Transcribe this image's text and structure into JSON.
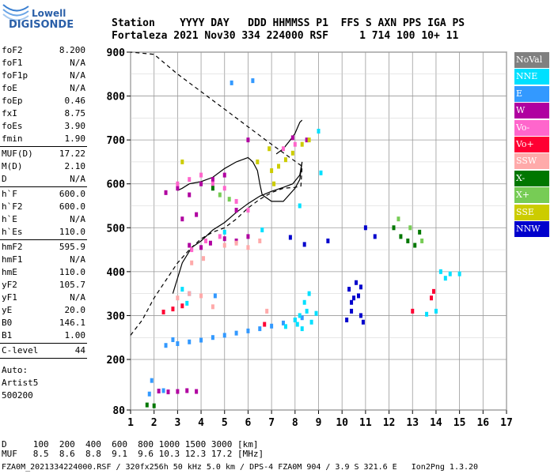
{
  "logo": {
    "line1": "Lowell",
    "line2": "DIGISONDE"
  },
  "header": {
    "labels": "Station    YYYY DAY   DDD HHMMSS P1  FFS S AXN PPS IGA PS",
    "values": "Fortaleza 2021 Nov30 334 224000 RSF     1 714 100 10+ 11"
  },
  "params": {
    "group1": [
      {
        "label": "foF2",
        "value": "8.200"
      },
      {
        "label": "foF1",
        "value": "N/A"
      },
      {
        "label": "foF1p",
        "value": "N/A"
      },
      {
        "label": "foE",
        "value": "N/A"
      },
      {
        "label": "foEp",
        "value": "0.46"
      },
      {
        "label": "fxI",
        "value": "8.75"
      },
      {
        "label": "foEs",
        "value": "3.90"
      },
      {
        "label": "fmin",
        "value": "1.90"
      }
    ],
    "group2": [
      {
        "label": "MUF(D)",
        "value": "17.22"
      },
      {
        "label": "M(D)",
        "value": "2.10"
      },
      {
        "label": "D",
        "value": "N/A"
      }
    ],
    "group3": [
      {
        "label": "h`F",
        "value": "600.0"
      },
      {
        "label": "h`F2",
        "value": "600.0"
      },
      {
        "label": "h`E",
        "value": "N/A"
      },
      {
        "label": "h`Es",
        "value": "110.0"
      }
    ],
    "group4": [
      {
        "label": "hmF2",
        "value": "595.9"
      },
      {
        "label": "hmF1",
        "value": "N/A"
      },
      {
        "label": "hmE",
        "value": "110.0"
      },
      {
        "label": "yF2",
        "value": "105.7"
      },
      {
        "label": "yF1",
        "value": "N/A"
      },
      {
        "label": "yE",
        "value": "20.0"
      },
      {
        "label": "B0",
        "value": "146.1"
      },
      {
        "label": "B1",
        "value": "1.00"
      }
    ],
    "group5": [
      {
        "label": "C-level",
        "value": "44"
      }
    ],
    "auto": [
      "Auto:",
      "Artist5",
      "500200"
    ]
  },
  "legend": [
    {
      "label": "NoVal",
      "color": "#808080"
    },
    {
      "label": "NNE",
      "color": "#00e0ff"
    },
    {
      "label": "E",
      "color": "#3399ff"
    },
    {
      "label": "W",
      "color": "#b000a0"
    },
    {
      "label": "Vo-",
      "color": "#ff66cc"
    },
    {
      "label": "Vo+",
      "color": "#ff0033"
    },
    {
      "label": "SSW",
      "color": "#ffaaaa"
    },
    {
      "label": "X-",
      "color": "#007700"
    },
    {
      "label": "X+",
      "color": "#77cc55"
    },
    {
      "label": "SSE",
      "color": "#cccc00"
    },
    {
      "label": "NNW",
      "color": "#0000cc"
    }
  ],
  "footer": {
    "line1": "D     100  200  400  600  800 1000 1500 3000 [km]",
    "line2": "MUF   8.5  8.6  8.8  9.1  9.6 10.3 12.3 17.2 [MHz]",
    "line3": "FZA0M_2021334224000.RSF / 320fx256h 50 kHz 5.0 km / DPS-4 FZA0M 904 / 3.9 S 321.6 E   Ion2Png 1.3.20"
  },
  "chart_data": {
    "type": "scatter",
    "xlim": [
      1,
      17
    ],
    "ylim": [
      80,
      900
    ],
    "x_ticks": [
      1,
      2,
      3,
      4,
      5,
      6,
      7,
      8,
      9,
      10,
      11,
      12,
      13,
      14,
      15,
      16,
      17
    ],
    "y_ticks": [
      80,
      200,
      300,
      400,
      500,
      600,
      700,
      800,
      900
    ],
    "grid": true,
    "legend_position": "right",
    "series": [
      {
        "name": "E",
        "color": "#3399ff",
        "points": [
          [
            2.5,
            232
          ],
          [
            3,
            236
          ],
          [
            3.5,
            240
          ],
          [
            4,
            244
          ],
          [
            4.5,
            250
          ],
          [
            5,
            255
          ],
          [
            5.5,
            260
          ],
          [
            6,
            265
          ],
          [
            6.5,
            270
          ],
          [
            7,
            276
          ],
          [
            7.5,
            283
          ],
          [
            8,
            290
          ],
          [
            8.3,
            295
          ],
          [
            2.8,
            245
          ],
          [
            2.4,
            126
          ],
          [
            1.8,
            118
          ],
          [
            1.9,
            150
          ],
          [
            3.5,
            350
          ],
          [
            4.6,
            345
          ],
          [
            6.2,
            835
          ],
          [
            5.3,
            830
          ]
        ]
      },
      {
        "name": "NNE",
        "color": "#00e0ff",
        "points": [
          [
            8,
            290
          ],
          [
            8.2,
            300
          ],
          [
            8.5,
            310
          ],
          [
            8.7,
            285
          ],
          [
            8.9,
            305
          ],
          [
            8.4,
            330
          ],
          [
            8.6,
            350
          ],
          [
            8.1,
            280
          ],
          [
            7.6,
            275
          ],
          [
            8.3,
            270
          ],
          [
            14,
            310
          ],
          [
            13.6,
            303
          ],
          [
            14.2,
            400
          ],
          [
            14.6,
            395
          ],
          [
            14.4,
            385
          ],
          [
            15,
            395
          ],
          [
            9,
            720
          ],
          [
            8.2,
            550
          ],
          [
            9.1,
            625
          ],
          [
            3.2,
            360
          ],
          [
            3.4,
            328
          ],
          [
            5,
            490
          ],
          [
            6.6,
            495
          ]
        ]
      },
      {
        "name": "W",
        "color": "#b000a0",
        "points": [
          [
            2.2,
            125
          ],
          [
            2.6,
            123
          ],
          [
            3,
            124
          ],
          [
            3.4,
            126
          ],
          [
            3.8,
            124
          ],
          [
            2.5,
            580
          ],
          [
            3,
            590
          ],
          [
            3.5,
            575
          ],
          [
            4,
            600
          ],
          [
            4.5,
            610
          ],
          [
            5,
            620
          ],
          [
            5.5,
            540
          ],
          [
            3.5,
            460
          ],
          [
            4,
            455
          ],
          [
            4.4,
            465
          ],
          [
            5,
            475
          ],
          [
            5.5,
            470
          ],
          [
            6,
            480
          ],
          [
            3.2,
            520
          ],
          [
            3.8,
            530
          ],
          [
            8.5,
            700
          ],
          [
            7.9,
            705
          ],
          [
            6,
            700
          ]
        ]
      },
      {
        "name": "Vo-",
        "color": "#ff66cc",
        "points": [
          [
            3,
            600
          ],
          [
            3.5,
            610
          ],
          [
            4,
            620
          ],
          [
            4.5,
            600
          ],
          [
            5,
            590
          ],
          [
            5.5,
            560
          ],
          [
            6,
            540
          ],
          [
            3.6,
            450
          ],
          [
            4.2,
            470
          ],
          [
            4.8,
            480
          ],
          [
            7.5,
            680
          ],
          [
            8,
            690
          ]
        ]
      },
      {
        "name": "Vo+",
        "color": "#ff0033",
        "points": [
          [
            2.8,
            315
          ],
          [
            2.4,
            308
          ],
          [
            3.2,
            322
          ],
          [
            13.8,
            340
          ],
          [
            13.9,
            355
          ],
          [
            13,
            310
          ],
          [
            6.7,
            280
          ]
        ]
      },
      {
        "name": "SSW",
        "color": "#ffaaaa",
        "points": [
          [
            3,
            340
          ],
          [
            3.5,
            350
          ],
          [
            4,
            345
          ],
          [
            4.5,
            320
          ],
          [
            5,
            460
          ],
          [
            5.5,
            465
          ],
          [
            6,
            455
          ],
          [
            6.5,
            470
          ],
          [
            3.6,
            420
          ],
          [
            4.1,
            430
          ],
          [
            6.8,
            310
          ]
        ]
      },
      {
        "name": "X-",
        "color": "#007700",
        "points": [
          [
            1.7,
            92
          ],
          [
            2,
            90
          ],
          [
            12.5,
            480
          ],
          [
            12.8,
            470
          ],
          [
            13.1,
            460
          ],
          [
            13.3,
            490
          ],
          [
            12.2,
            500
          ],
          [
            4.5,
            590
          ]
        ]
      },
      {
        "name": "X+",
        "color": "#77cc55",
        "points": [
          [
            12.4,
            520
          ],
          [
            12.9,
            500
          ],
          [
            13.4,
            470
          ],
          [
            4.8,
            575
          ],
          [
            5.2,
            565
          ]
        ]
      },
      {
        "name": "SSE",
        "color": "#cccc00",
        "points": [
          [
            7,
            630
          ],
          [
            7.3,
            640
          ],
          [
            7.6,
            655
          ],
          [
            7.9,
            670
          ],
          [
            8.3,
            690
          ],
          [
            8.6,
            700
          ],
          [
            6.4,
            650
          ],
          [
            3.2,
            650
          ],
          [
            6.9,
            680
          ],
          [
            7.1,
            600
          ]
        ]
      },
      {
        "name": "NNW",
        "color": "#0000cc",
        "points": [
          [
            10.3,
            360
          ],
          [
            10.5,
            340
          ],
          [
            10.6,
            375
          ],
          [
            10.4,
            330
          ],
          [
            10.8,
            365
          ],
          [
            10.7,
            345
          ],
          [
            10.2,
            290
          ],
          [
            10.8,
            300
          ],
          [
            10.9,
            285
          ],
          [
            10.4,
            310
          ],
          [
            11.4,
            480
          ],
          [
            11,
            500
          ],
          [
            9.4,
            470
          ],
          [
            7.8,
            478
          ],
          [
            8.4,
            462
          ]
        ]
      }
    ],
    "curves": [
      {
        "style": "dashed",
        "points": [
          [
            1,
            255
          ],
          [
            1.5,
            290
          ],
          [
            2,
            340
          ],
          [
            2.5,
            380
          ],
          [
            3,
            420
          ],
          [
            3.5,
            450
          ],
          [
            4,
            475
          ],
          [
            4.5,
            490
          ],
          [
            5,
            500
          ],
          [
            5.5,
            520
          ],
          [
            6,
            545
          ],
          [
            6.5,
            565
          ],
          [
            7,
            580
          ],
          [
            7.5,
            590
          ],
          [
            8,
            592
          ],
          [
            8.25,
            595
          ],
          [
            8.3,
            640
          ],
          [
            7,
            690
          ],
          [
            6,
            730
          ],
          [
            5,
            770
          ],
          [
            4,
            810
          ],
          [
            3,
            850
          ],
          [
            2,
            895
          ],
          [
            1,
            900
          ]
        ]
      },
      {
        "style": "solid",
        "points": [
          [
            2.8,
            350
          ],
          [
            3.2,
            420
          ],
          [
            3.6,
            455
          ],
          [
            4,
            470
          ],
          [
            4.5,
            495
          ],
          [
            5,
            512
          ],
          [
            5.5,
            535
          ],
          [
            6,
            555
          ],
          [
            6.5,
            572
          ],
          [
            7,
            583
          ],
          [
            7.5,
            592
          ],
          [
            7.9,
            600
          ],
          [
            8.2,
            620
          ],
          [
            8.3,
            650
          ],
          [
            8.2,
            610
          ],
          [
            8,
            590
          ],
          [
            7.5,
            560
          ],
          [
            7,
            560
          ],
          [
            6.6,
            575
          ],
          [
            6.5,
            600
          ],
          [
            6.4,
            630
          ],
          [
            6.2,
            650
          ],
          [
            6,
            660
          ],
          [
            5.5,
            650
          ],
          [
            5,
            635
          ],
          [
            4.5,
            615
          ],
          [
            4,
            605
          ],
          [
            3.5,
            600
          ],
          [
            3.2,
            590
          ],
          [
            3,
            585
          ]
        ]
      },
      {
        "style": "solid",
        "points": [
          [
            7.2,
            668
          ],
          [
            7.5,
            680
          ],
          [
            7.8,
            700
          ],
          [
            8,
            715
          ],
          [
            8.2,
            740
          ],
          [
            8.3,
            745
          ]
        ]
      }
    ]
  }
}
